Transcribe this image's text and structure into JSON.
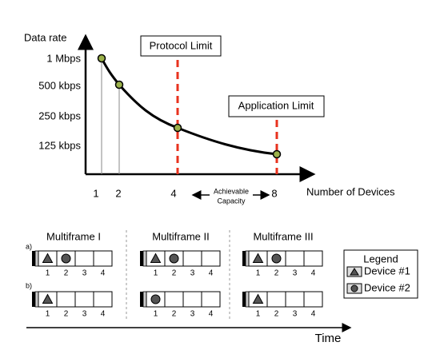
{
  "chart": {
    "y_axis_label": "Data rate",
    "y_labels": [
      "1 Mbps",
      "500 kbps",
      "250 kbps",
      "125 kbps"
    ],
    "x_labels": [
      "1",
      "2",
      "4",
      "8"
    ],
    "x_axis_label": "Number of Devices",
    "annotations": {
      "protocol_limit": "Protocol Limit",
      "application_limit": "Application Limit",
      "achievable_capacity": [
        "Achievable",
        "Capacity"
      ]
    }
  },
  "multiframes": {
    "titles": [
      "Multiframe I",
      "Multiframe II",
      "Multiframe III"
    ],
    "rows": [
      "a)",
      "b)"
    ],
    "slot_labels": [
      "1",
      "2",
      "3",
      "4"
    ]
  },
  "legend": {
    "title": "Legend",
    "items": [
      "Device #1",
      "Device #2"
    ]
  },
  "time_label": "Time"
}
